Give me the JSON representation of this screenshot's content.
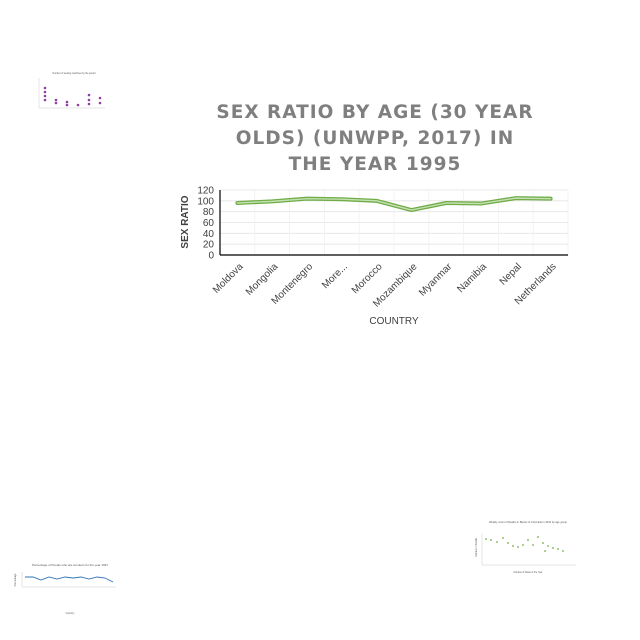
{
  "chart_data": {
    "type": "line",
    "title": "SEX RATIO BY AGE (30 YEAR OLDS) (UNWPP, 2017) IN THE YEAR 1995",
    "xlabel": "COUNTRY",
    "ylabel": "SEX RATIO",
    "categories": [
      "Moldova",
      "Mongolia",
      "Montenegro",
      "More...",
      "Morocco",
      "Mozambique",
      "Myanmar",
      "Namibia",
      "Nepal",
      "Netherlands"
    ],
    "series": [
      {
        "values": [
          96,
          99,
          104,
          103,
          100,
          83,
          96,
          95,
          105,
          104
        ]
      }
    ],
    "yticks": [
      "0",
      "20",
      "40",
      "60",
      "80",
      "100",
      "120"
    ],
    "ylim": [
      0,
      120
    ],
    "grid": true,
    "legend": "none",
    "line_color": "#70ad47"
  },
  "thumbnails": {
    "top_left": {
      "title": "Number of sewing machines by the period"
    },
    "bottom_left": {
      "title": "Percentage of People who are smokers for the year 1997",
      "xlabel": "Country",
      "ylabel": "Percentage"
    },
    "bottom_right": {
      "title": "Weekly count of Deaths in Bamet of Columbia in 2016 by age group",
      "xlabel": "Number of Week of the Year",
      "ylabel": "Number of Deaths"
    }
  }
}
